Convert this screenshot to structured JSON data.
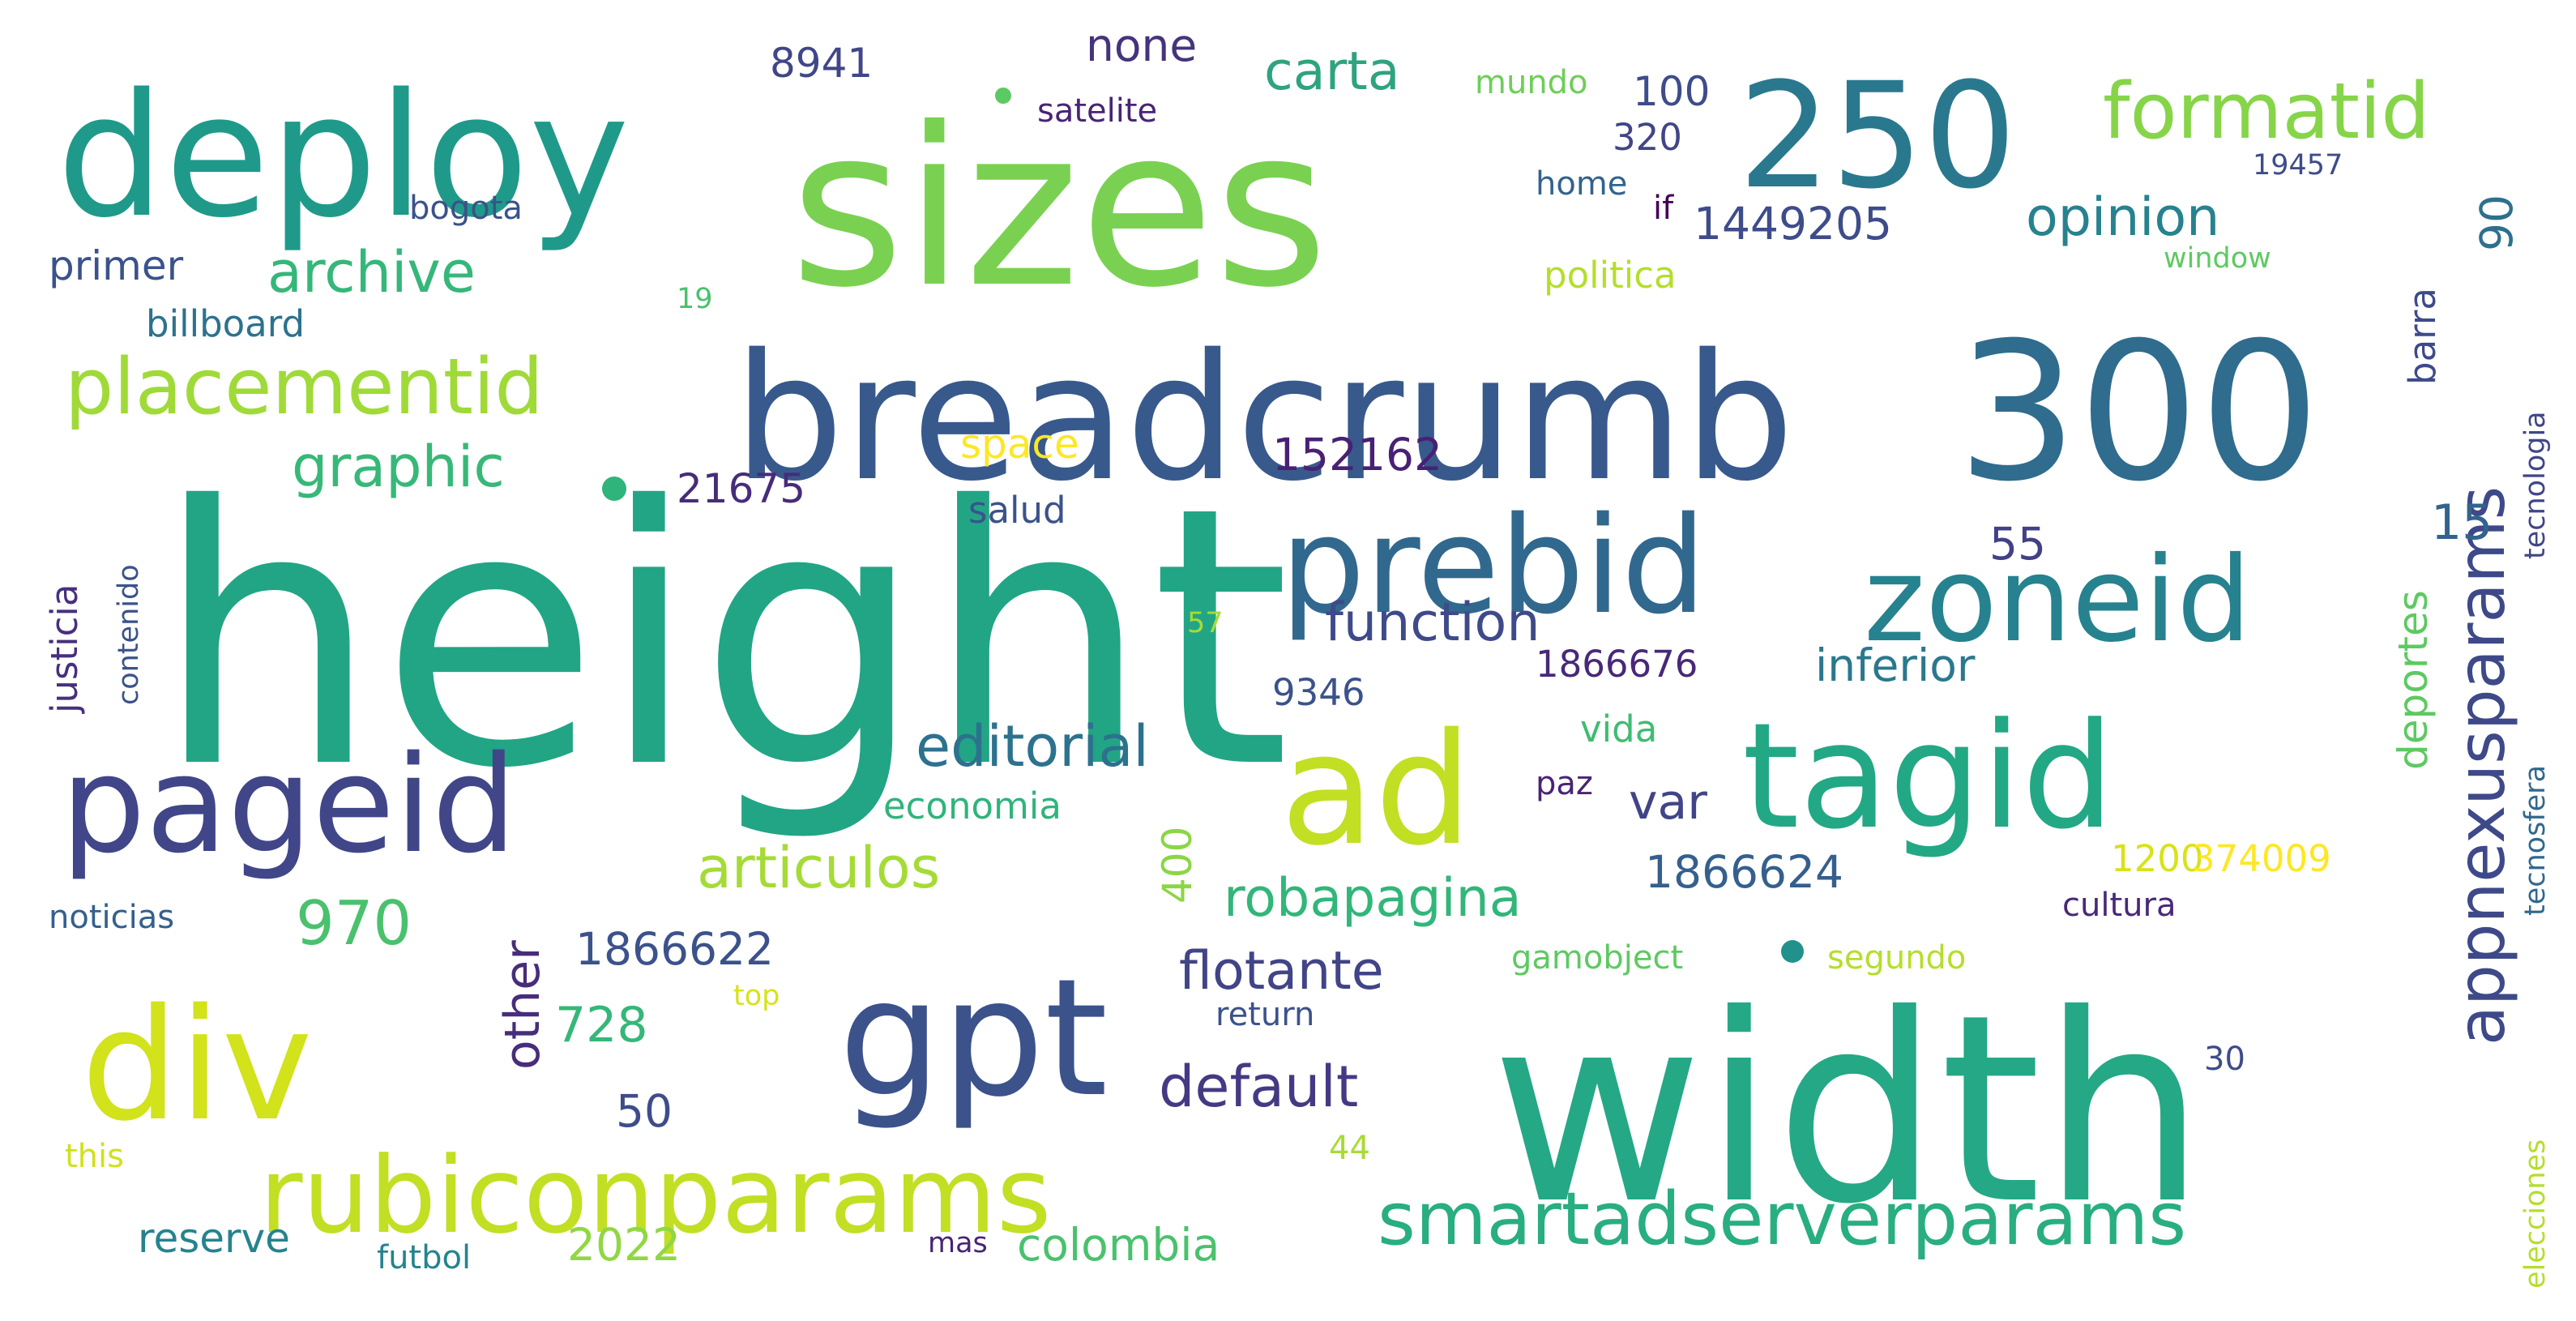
{
  "words": [
    {
      "text": "height",
      "color": "#21a585"
    },
    {
      "text": "width",
      "color": "#25a885"
    },
    {
      "text": "sizes",
      "color": "#7ad151"
    },
    {
      "text": "breadcrumb",
      "color": "#38598c"
    },
    {
      "text": "300",
      "color": "#2f6c8e"
    },
    {
      "text": "deploy",
      "color": "#1f9a8a"
    },
    {
      "text": "250",
      "color": "#2a788e"
    },
    {
      "text": "gpt",
      "color": "#3b528b"
    },
    {
      "text": "ad",
      "color": "#c2df23"
    },
    {
      "text": "tagid",
      "color": "#22a884"
    },
    {
      "text": "prebid",
      "color": "#31688e"
    },
    {
      "text": "pageid",
      "color": "#404688"
    },
    {
      "text": "div",
      "color": "#d2e21b"
    },
    {
      "text": "zoneid",
      "color": "#26828e"
    },
    {
      "text": "rubiconparams",
      "color": "#c2df23"
    },
    {
      "text": "formatid",
      "color": "#86d549"
    },
    {
      "text": "smartadserverparams",
      "color": "#28ae80"
    },
    {
      "text": "placementid",
      "color": "#a0da39"
    },
    {
      "text": "appnexusparams",
      "color": "#3e4989"
    },
    {
      "text": "editorial",
      "color": "#2c728e"
    },
    {
      "text": "archive",
      "color": "#35b779"
    },
    {
      "text": "robapagina",
      "color": "#32b67a"
    },
    {
      "text": "articulos",
      "color": "#a5db36"
    },
    {
      "text": "graphic",
      "color": "#37b878"
    },
    {
      "text": "opinion",
      "color": "#26828e"
    },
    {
      "text": "function",
      "color": "#3e4a89"
    },
    {
      "text": "default",
      "color": "#443a83"
    },
    {
      "text": "flotante",
      "color": "#414487"
    },
    {
      "text": "inferior",
      "color": "#2a788e"
    },
    {
      "text": "carta",
      "color": "#2ea37f"
    },
    {
      "text": "970",
      "color": "#4ac16d"
    },
    {
      "text": "1866624",
      "color": "#355f8d"
    },
    {
      "text": "1866622",
      "color": "#3b528b"
    },
    {
      "text": "1449205",
      "color": "#3e4c8a"
    },
    {
      "text": "152162",
      "color": "#482173"
    },
    {
      "text": "728",
      "color": "#35b779"
    },
    {
      "text": "other",
      "color": "#472d7b"
    },
    {
      "text": "400",
      "color": "#8bd646"
    },
    {
      "text": "50",
      "color": "#3e4c8a"
    },
    {
      "text": "var",
      "color": "#414487"
    },
    {
      "text": "primer",
      "color": "#3b528b"
    },
    {
      "text": "reserve",
      "color": "#25838e"
    },
    {
      "text": "2022",
      "color": "#90d743"
    },
    {
      "text": "colombia",
      "color": "#4ac16d"
    },
    {
      "text": "none",
      "color": "#46337e"
    },
    {
      "text": "8941",
      "color": "#404688"
    },
    {
      "text": "100",
      "color": "#3e4c8a"
    },
    {
      "text": "90",
      "color": "#2d708e"
    },
    {
      "text": "barra",
      "color": "#3e4a89"
    },
    {
      "text": "deportes",
      "color": "#5ec962"
    },
    {
      "text": "15",
      "color": "#33638d"
    },
    {
      "text": "55",
      "color": "#424086"
    },
    {
      "text": "21675",
      "color": "#472c7a"
    },
    {
      "text": "1866676",
      "color": "#482878"
    },
    {
      "text": "9346",
      "color": "#3b528b"
    },
    {
      "text": "1200",
      "color": "#d8e219"
    },
    {
      "text": "374009",
      "color": "#fde725"
    },
    {
      "text": "space",
      "color": "#fde725"
    },
    {
      "text": "if",
      "color": "#440154"
    },
    {
      "text": "320",
      "color": "#414487"
    },
    {
      "text": "billboard",
      "color": "#2c728e"
    },
    {
      "text": "justicia",
      "color": "#472f7d"
    },
    {
      "text": "contenido",
      "color": "#3b528b"
    },
    {
      "text": "noticias",
      "color": "#355f8d"
    },
    {
      "text": "economia",
      "color": "#2fb47c"
    },
    {
      "text": "vida",
      "color": "#3fbc73"
    },
    {
      "text": "salud",
      "color": "#3b528b"
    },
    {
      "text": "politica",
      "color": "#b5de2b"
    },
    {
      "text": "home",
      "color": "#33638d"
    },
    {
      "text": "satelite",
      "color": "#482475"
    },
    {
      "text": "mundo",
      "color": "#6ece58"
    },
    {
      "text": "bogota",
      "color": "#3b528b"
    },
    {
      "text": "19",
      "color": "#4ac16d"
    },
    {
      "text": "57",
      "color": "#a8db34"
    },
    {
      "text": "paz",
      "color": "#482475"
    },
    {
      "text": "cultura",
      "color": "#482878"
    },
    {
      "text": "gamobject",
      "color": "#5ec962"
    },
    {
      "text": "segundo",
      "color": "#b5de2b"
    },
    {
      "text": "top",
      "color": "#d8e219"
    },
    {
      "text": "return",
      "color": "#3b528b"
    },
    {
      "text": "this",
      "color": "#d0e11c"
    },
    {
      "text": "44",
      "color": "#a8db34"
    },
    {
      "text": "30",
      "color": "#3e4c8a"
    },
    {
      "text": "mas",
      "color": "#482475"
    },
    {
      "text": "futbol",
      "color": "#25848e"
    },
    {
      "text": "19457",
      "color": "#3e4c8a"
    },
    {
      "text": "window",
      "color": "#5ec962"
    },
    {
      "text": "tecnologia",
      "color": "#404688"
    },
    {
      "text": "tecnosfera",
      "color": "#31688e"
    },
    {
      "text": "elecciones",
      "color": "#b5de2b"
    }
  ]
}
